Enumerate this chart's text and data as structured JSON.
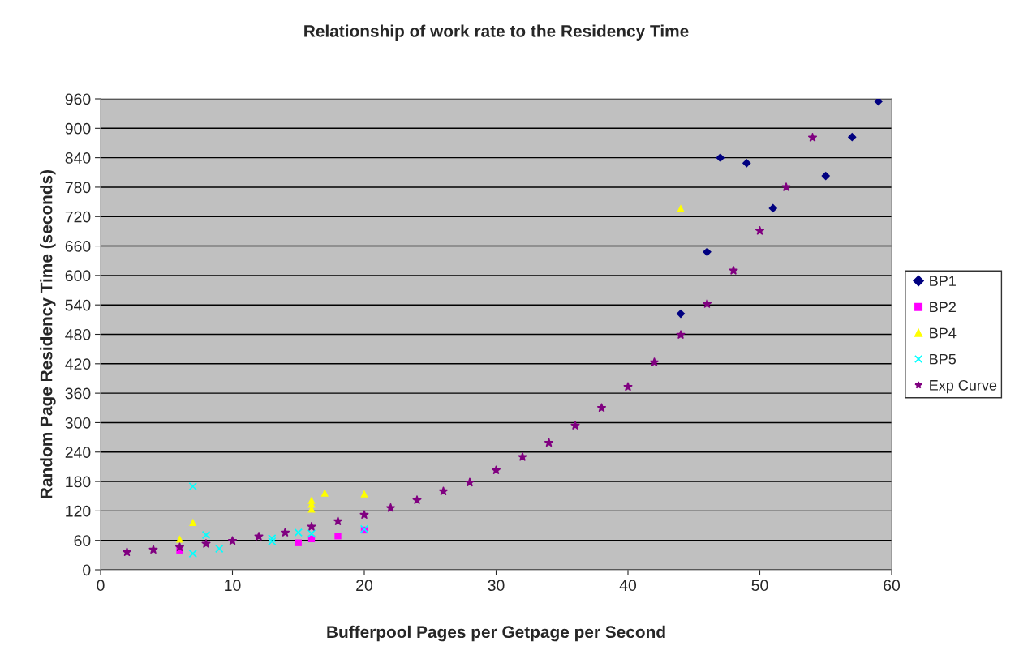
{
  "chart_data": {
    "type": "scatter",
    "title": "Relationship of work rate to the Residency Time",
    "xlabel": "Bufferpool Pages per Getpage per Second",
    "ylabel": "Random Page Residency Time (seconds)",
    "xlim": [
      0,
      60
    ],
    "xticks": [
      0,
      10,
      20,
      30,
      40,
      50,
      60
    ],
    "ylim": [
      0,
      960
    ],
    "yticks": [
      0,
      60,
      120,
      180,
      240,
      300,
      360,
      420,
      480,
      540,
      600,
      660,
      720,
      780,
      840,
      900,
      960
    ],
    "grid": "y",
    "legend": "right",
    "series": [
      {
        "name": "BP1",
        "color": "#000080",
        "marker": "diamond",
        "x": [
          44,
          46,
          47,
          49,
          51,
          55,
          57,
          59
        ],
        "values": [
          522,
          648,
          840,
          829,
          737,
          803,
          882,
          955
        ]
      },
      {
        "name": "BP2",
        "color": "#ff00ff",
        "marker": "square",
        "x": [
          6,
          15,
          16,
          18,
          20
        ],
        "values": [
          40,
          55,
          63,
          69,
          81
        ]
      },
      {
        "name": "BP4",
        "color": "#ffff00",
        "marker": "triangle",
        "x": [
          6,
          7,
          16,
          16,
          16,
          17,
          20,
          44
        ],
        "values": [
          63,
          97,
          142,
          134,
          124,
          157,
          155,
          737
        ]
      },
      {
        "name": "BP5",
        "color": "#00ffff",
        "marker": "cross",
        "x": [
          7,
          7,
          8,
          9,
          13,
          13,
          15,
          16,
          20
        ],
        "values": [
          170,
          33,
          71,
          43,
          64,
          58,
          76,
          74,
          83
        ]
      },
      {
        "name": "Exp Curve",
        "color": "#800080",
        "marker": "star",
        "x": [
          2,
          4,
          6,
          8,
          10,
          12,
          14,
          16,
          18,
          20,
          22,
          24,
          26,
          28,
          30,
          32,
          34,
          36,
          38,
          40,
          42,
          44,
          46,
          48,
          50,
          52,
          54
        ],
        "values": [
          36,
          41,
          46,
          53,
          59,
          68,
          76,
          88,
          99,
          112,
          126,
          142,
          160,
          178,
          203,
          230,
          259,
          294,
          330,
          373,
          423,
          479,
          542,
          610,
          691,
          780,
          881
        ]
      }
    ]
  }
}
